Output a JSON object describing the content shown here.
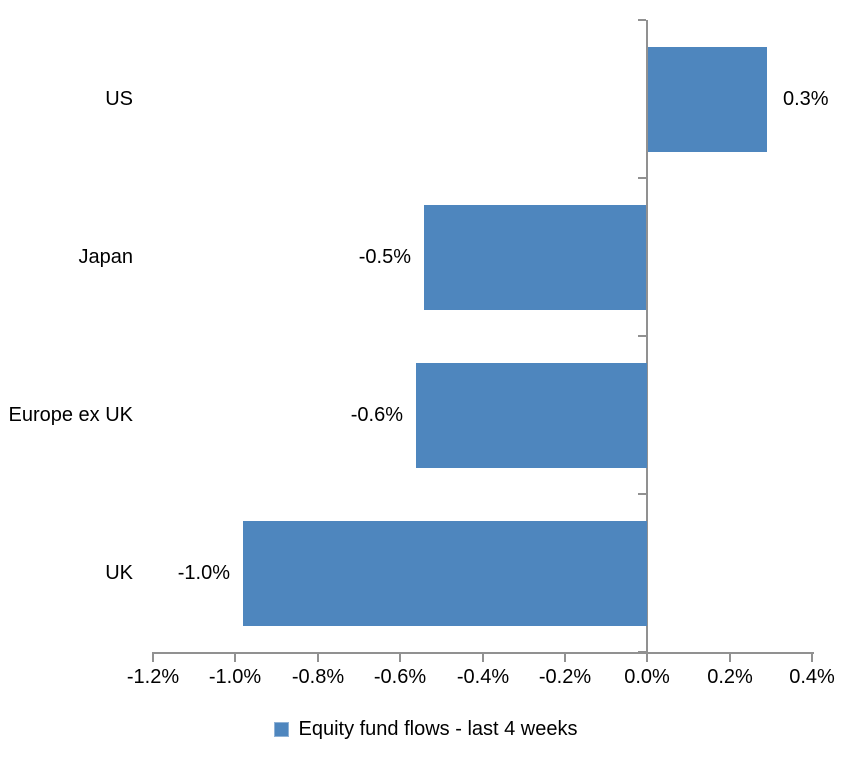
{
  "chart_data": {
    "type": "bar",
    "orientation": "horizontal",
    "title": "",
    "categories": [
      "US",
      "Japan",
      "Europe ex UK",
      "UK"
    ],
    "series": [
      {
        "name": "Equity fund flows - last 4 weeks",
        "values": [
          0.29,
          -0.54,
          -0.56,
          -0.98
        ],
        "data_labels": [
          "0.3%",
          "-0.5%",
          "-0.6%",
          "-1.0%"
        ]
      }
    ],
    "x_axis": {
      "min": -1.2,
      "max": 0.4,
      "tick_step": 0.2,
      "unit": "%",
      "tick_labels": [
        "-1.2%",
        "-1.0%",
        "-0.8%",
        "-0.6%",
        "-0.4%",
        "-0.2%",
        "0.0%",
        "0.2%",
        "0.4%"
      ]
    },
    "legend": {
      "label": "Equity fund flows - last 4 weeks",
      "position": "bottom",
      "marker": "square"
    },
    "data_label_position": "outside-end",
    "grid": false,
    "colors": {
      "bar": "#4E86BE",
      "axis": "#919191",
      "text": "#000000",
      "background": "#FFFFFF"
    }
  }
}
